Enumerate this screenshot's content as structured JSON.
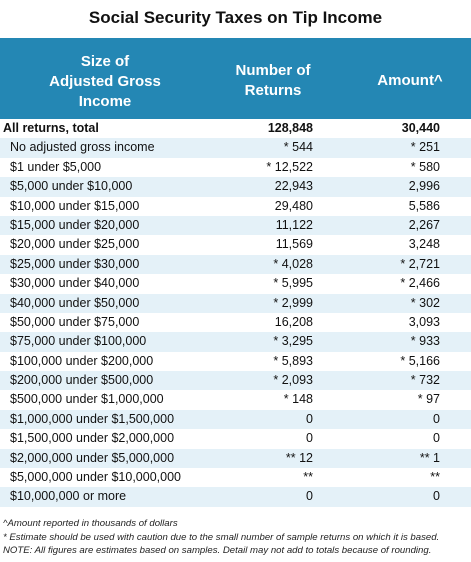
{
  "title": "Social Security Taxes on Tip Income",
  "header": {
    "size_line1": "Size of",
    "size_line2": "Adjusted Gross",
    "size_line3": "Income",
    "returns_line1": "Number of",
    "returns_line2": "Returns",
    "amount": "Amount^"
  },
  "rows": [
    {
      "label": "All returns, total",
      "returns": "128,848",
      "amount": "30,440"
    },
    {
      "label": "No adjusted gross income",
      "returns": "* 544",
      "amount": "* 251"
    },
    {
      "label": "$1 under $5,000",
      "returns": "* 12,522",
      "amount": "* 580"
    },
    {
      "label": "$5,000 under $10,000",
      "returns": "22,943",
      "amount": "2,996"
    },
    {
      "label": "$10,000 under $15,000",
      "returns": "29,480",
      "amount": "5,586"
    },
    {
      "label": "$15,000 under $20,000",
      "returns": "11,122",
      "amount": "2,267"
    },
    {
      "label": "$20,000 under $25,000",
      "returns": "11,569",
      "amount": "3,248"
    },
    {
      "label": "$25,000 under $30,000",
      "returns": "* 4,028",
      "amount": "* 2,721"
    },
    {
      "label": "$30,000 under $40,000",
      "returns": "* 5,995",
      "amount": "* 2,466"
    },
    {
      "label": "$40,000 under $50,000",
      "returns": "* 2,999",
      "amount": "* 302"
    },
    {
      "label": "$50,000 under $75,000",
      "returns": "16,208",
      "amount": "3,093"
    },
    {
      "label": "$75,000 under $100,000",
      "returns": "* 3,295",
      "amount": "* 933"
    },
    {
      "label": "$100,000 under $200,000",
      "returns": "* 5,893",
      "amount": "* 5,166"
    },
    {
      "label": "$200,000 under $500,000",
      "returns": "* 2,093",
      "amount": "* 732"
    },
    {
      "label": "$500,000 under $1,000,000",
      "returns": "* 148",
      "amount": "* 97"
    },
    {
      "label": "$1,000,000 under $1,500,000",
      "returns": "0",
      "amount": "0"
    },
    {
      "label": "$1,500,000 under $2,000,000",
      "returns": "0",
      "amount": "0"
    },
    {
      "label": "$2,000,000 under $5,000,000",
      "returns": "** 12",
      "amount": "** 1"
    },
    {
      "label": "$5,000,000 under $10,000,000",
      "returns": "**",
      "amount": "**"
    },
    {
      "label": "$10,000,000 or more",
      "returns": "0",
      "amount": "0"
    }
  ],
  "footnotes": {
    "amount_note": "^Amount reported in thousands of dollars",
    "estimate_note": "* Estimate should be used with caution due to the small number of sample returns on which it is based.",
    "general_note": "NOTE: All figures are estimates based on samples. Detail may not add to totals because of rounding."
  },
  "colors": {
    "header_bg": "#2487b4",
    "alt_row_bg": "#e4f1f8"
  }
}
